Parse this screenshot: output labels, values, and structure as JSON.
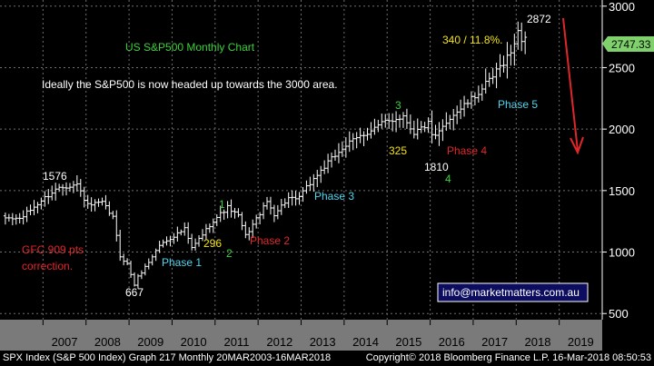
{
  "colors": {
    "background": "#000000",
    "axis_band": "#7a7a7a",
    "grid": "#6e6e6e",
    "candle": "#ffffff",
    "last_price_tag": "#7fd16b",
    "green_text": "#39d23a",
    "cyan_text": "#4fd4ee",
    "red_text": "#e1262a",
    "yellow_text": "#f3e312",
    "white_text": "#ffffff",
    "arrow": "#e1262a",
    "email_box": "#0d0d60"
  },
  "chart_data": {
    "type": "candlestick",
    "title": "US S&P500 Monthly Chart",
    "subtitle": "Ideally the S&P500 is now headed up towards the 3000 area.",
    "ylim": [
      450,
      3050
    ],
    "y_ticks": [
      500,
      1000,
      1500,
      2000,
      2500,
      3000
    ],
    "y_tick_labels": [
      "500",
      "1000",
      "1500",
      "2000",
      "2500",
      "3000"
    ],
    "x_range": [
      "2006-01",
      "2019-12"
    ],
    "x_ticks": [
      "2007",
      "2008",
      "2009",
      "2010",
      "2011",
      "2012",
      "2013",
      "2014",
      "2015",
      "2016",
      "2017",
      "2018",
      "2019"
    ],
    "last_price": 2747.33,
    "last_price_label": "2747.33",
    "grid": true,
    "path_points": [
      [
        "2006-01",
        1280
      ],
      [
        "2006-06",
        1270
      ],
      [
        "2007-01",
        1440
      ],
      [
        "2007-05",
        1530
      ],
      [
        "2007-10",
        1549
      ],
      [
        "2008-01",
        1378
      ],
      [
        "2008-05",
        1400
      ],
      [
        "2008-08",
        1282
      ],
      [
        "2008-10",
        968
      ],
      [
        "2008-12",
        903
      ],
      [
        "2009-02",
        735
      ],
      [
        "2009-03",
        797
      ],
      [
        "2009-06",
        919
      ],
      [
        "2009-09",
        1057
      ],
      [
        "2010-04",
        1186
      ],
      [
        "2010-06",
        1030
      ],
      [
        "2010-12",
        1257
      ],
      [
        "2011-04",
        1363
      ],
      [
        "2011-07",
        1292
      ],
      [
        "2011-09",
        1131
      ],
      [
        "2012-03",
        1408
      ],
      [
        "2012-05",
        1310
      ],
      [
        "2012-09",
        1440
      ],
      [
        "2012-11",
        1416
      ],
      [
        "2013-05",
        1630
      ],
      [
        "2013-12",
        1848
      ],
      [
        "2014-06",
        1960
      ],
      [
        "2014-12",
        2058
      ],
      [
        "2015-05",
        2107
      ],
      [
        "2015-08",
        1972
      ],
      [
        "2015-12",
        2043
      ],
      [
        "2016-01",
        1940
      ],
      [
        "2016-02",
        1932
      ],
      [
        "2016-06",
        2098
      ],
      [
        "2016-12",
        2238
      ],
      [
        "2017-06",
        2423
      ],
      [
        "2017-12",
        2673
      ],
      [
        "2018-01",
        2823
      ],
      [
        "2018-02",
        2713
      ],
      [
        "2018-03",
        2747
      ]
    ],
    "annotations": {
      "high_2007": "1576",
      "low_2009": "667",
      "high_2018": "2872",
      "low_2016": "1810",
      "gfc_line1": "GFC 909 pts",
      "gfc_line2": "correction.",
      "phase1": "Phase 1",
      "phase2": "Phase 2",
      "phase3": "Phase 3",
      "phase4": "Phase 4",
      "phase5": "Phase 5",
      "wave1": "1",
      "wave2": "2",
      "wave3": "3",
      "wave4": "4",
      "pullback_2011": "296",
      "pullback_2015": "325",
      "gain": "340 / 11.8%."
    },
    "watermark": "info@marketmatters.com.au"
  },
  "footer": {
    "left": "SPX Index (S&P 500 Index) Graph 217  Monthly 20MAR2003-16MAR2018",
    "right": "Copyright© 2018 Bloomberg Finance L.P.   16-Mar-2018 08:50:53"
  }
}
